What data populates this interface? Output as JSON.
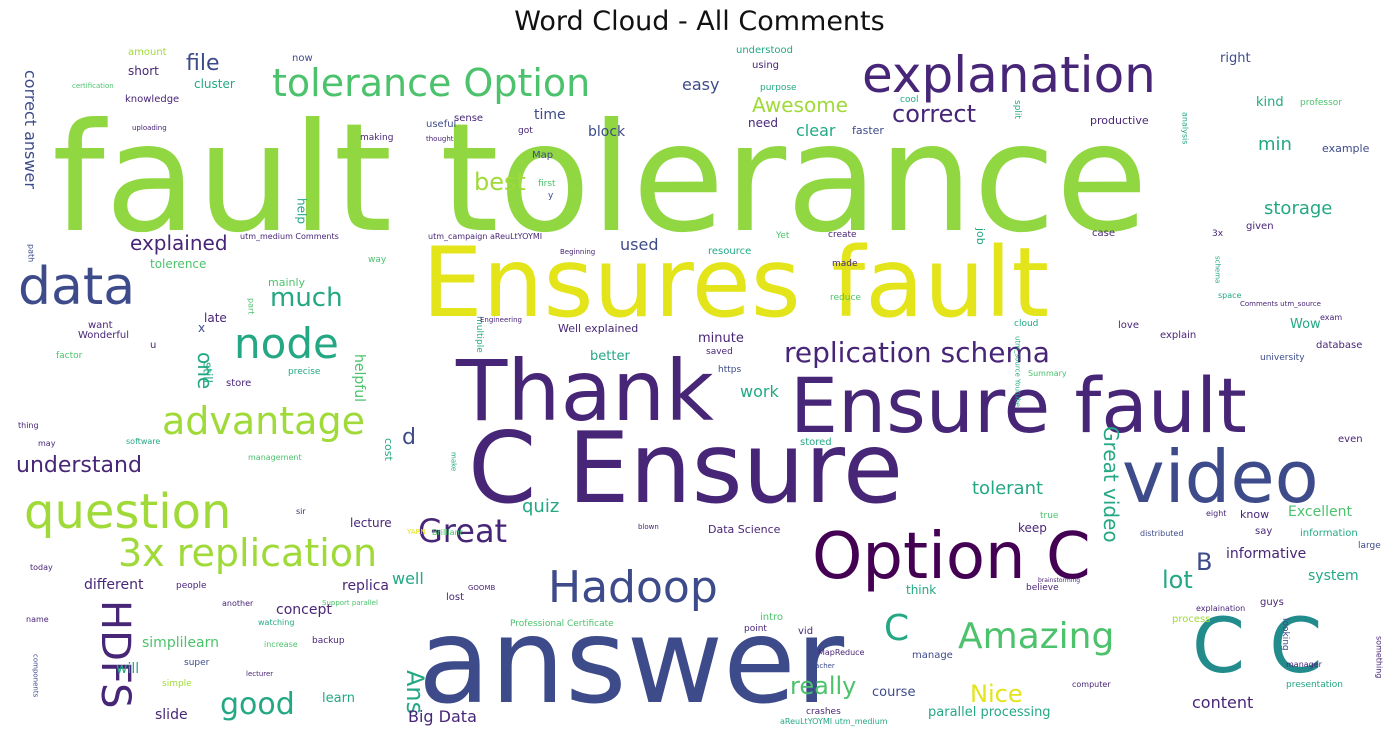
{
  "chart_data": {
    "type": "wordcloud",
    "title": "Word Cloud - All Comments",
    "colors": {
      "yellow": "#e3e419",
      "lime": "#91d742",
      "green": "#4cc26c",
      "teal": "#24a884",
      "cyan": "#228c8d",
      "blue": "#2d718e",
      "navy": "#3e4b8a",
      "indigo": "#482677",
      "purple": "#440154",
      "pale": "#a0da39"
    },
    "words": [
      {
        "text": "fault tolerance",
        "color": "lime"
      },
      {
        "text": "Ensures fault",
        "color": "yellow"
      },
      {
        "text": "answer",
        "color": "navy"
      },
      {
        "text": "C Ensure",
        "color": "indigo"
      },
      {
        "text": "Thank",
        "color": "indigo"
      },
      {
        "text": "Ensure fault",
        "color": "indigo"
      },
      {
        "text": "video",
        "color": "navy"
      },
      {
        "text": "Option C",
        "color": "purple"
      },
      {
        "text": "C C",
        "color": "cyan"
      },
      {
        "text": "explanation",
        "color": "indigo"
      },
      {
        "text": "data",
        "color": "navy"
      },
      {
        "text": "tolerance Option",
        "color": "green"
      },
      {
        "text": "Hadoop",
        "color": "navy"
      },
      {
        "text": "question",
        "color": "pale"
      },
      {
        "text": "3x replication",
        "color": "pale"
      },
      {
        "text": "node",
        "color": "teal"
      },
      {
        "text": "advantage",
        "color": "pale"
      },
      {
        "text": "replication schema",
        "color": "indigo"
      },
      {
        "text": "Amazing",
        "color": "green"
      },
      {
        "text": "Great",
        "color": "indigo"
      },
      {
        "text": "HDFS",
        "color": "indigo"
      },
      {
        "text": "good",
        "color": "teal"
      },
      {
        "text": "much",
        "color": "teal"
      },
      {
        "text": "explained",
        "color": "indigo"
      },
      {
        "text": "understand",
        "color": "indigo"
      },
      {
        "text": "correct",
        "color": "indigo"
      },
      {
        "text": "Awesome",
        "color": "pale"
      },
      {
        "text": "best",
        "color": "pale"
      },
      {
        "text": "file",
        "color": "navy"
      },
      {
        "text": "lot",
        "color": "teal"
      },
      {
        "text": "Nice",
        "color": "yellow"
      },
      {
        "text": "really",
        "color": "green"
      },
      {
        "text": "Ans",
        "color": "teal"
      },
      {
        "text": "quiz",
        "color": "teal"
      },
      {
        "text": "Great video",
        "color": "teal"
      },
      {
        "text": "correct answer",
        "color": "navy"
      },
      {
        "text": "one",
        "color": "teal"
      },
      {
        "text": "C",
        "color": "teal"
      },
      {
        "text": "B",
        "color": "navy"
      },
      {
        "text": "d",
        "color": "navy"
      },
      {
        "text": "storage",
        "color": "teal"
      },
      {
        "text": "tolerant",
        "color": "teal"
      },
      {
        "text": "min",
        "color": "teal"
      },
      {
        "text": "used",
        "color": "navy"
      },
      {
        "text": "clear",
        "color": "teal"
      },
      {
        "text": "easy",
        "color": "navy"
      },
      {
        "text": "time",
        "color": "navy"
      },
      {
        "text": "block",
        "color": "navy"
      },
      {
        "text": "content",
        "color": "indigo"
      },
      {
        "text": "informative",
        "color": "indigo"
      },
      {
        "text": "Excellent",
        "color": "green"
      },
      {
        "text": "work",
        "color": "teal"
      },
      {
        "text": "replica",
        "color": "indigo"
      },
      {
        "text": "concept",
        "color": "indigo"
      },
      {
        "text": "well",
        "color": "teal"
      },
      {
        "text": "Big Data",
        "color": "indigo"
      },
      {
        "text": "system",
        "color": "teal"
      },
      {
        "text": "slide",
        "color": "indigo"
      },
      {
        "text": "will",
        "color": "teal"
      },
      {
        "text": "simplilearn",
        "color": "green"
      },
      {
        "text": "course",
        "color": "navy"
      },
      {
        "text": "parallel processing",
        "color": "teal"
      },
      {
        "text": "learn",
        "color": "teal"
      },
      {
        "text": "lecture",
        "color": "indigo"
      },
      {
        "text": "kind",
        "color": "teal"
      },
      {
        "text": "right",
        "color": "navy"
      },
      {
        "text": "helpful",
        "color": "green"
      },
      {
        "text": "different",
        "color": "indigo"
      },
      {
        "text": "Wow",
        "color": "teal"
      },
      {
        "text": "better",
        "color": "teal"
      },
      {
        "text": "minute",
        "color": "indigo"
      },
      {
        "text": "Well explained",
        "color": "indigo"
      },
      {
        "text": "Data Science",
        "color": "indigo"
      },
      {
        "text": "keep",
        "color": "indigo"
      },
      {
        "text": "know",
        "color": "indigo"
      },
      {
        "text": "think",
        "color": "teal"
      },
      {
        "text": "faster",
        "color": "navy"
      },
      {
        "text": "productive",
        "color": "indigo"
      },
      {
        "text": "example",
        "color": "navy"
      },
      {
        "text": "need",
        "color": "indigo"
      },
      {
        "text": "cost",
        "color": "teal"
      },
      {
        "text": "job",
        "color": "teal"
      },
      {
        "text": "help",
        "color": "teal"
      },
      {
        "text": "late",
        "color": "indigo"
      },
      {
        "text": "x",
        "color": "navy"
      },
      {
        "text": "still",
        "color": "teal"
      },
      {
        "text": "tolerence",
        "color": "green"
      },
      {
        "text": "mainly",
        "color": "green"
      },
      {
        "text": "cluster",
        "color": "teal"
      },
      {
        "text": "short",
        "color": "indigo"
      },
      {
        "text": "knowledge",
        "color": "indigo"
      },
      {
        "text": "amount",
        "color": "pale"
      },
      {
        "text": "now",
        "color": "navy"
      },
      {
        "text": "understood",
        "color": "teal"
      },
      {
        "text": "using",
        "color": "indigo"
      },
      {
        "text": "purpose",
        "color": "teal"
      },
      {
        "text": "cool",
        "color": "teal"
      },
      {
        "text": "split",
        "color": "teal"
      },
      {
        "text": "analysis",
        "color": "teal"
      },
      {
        "text": "professor",
        "color": "green"
      },
      {
        "text": "useful",
        "color": "navy"
      },
      {
        "text": "sense",
        "color": "indigo"
      },
      {
        "text": "got",
        "color": "indigo"
      },
      {
        "text": "Map",
        "color": "navy"
      },
      {
        "text": "making",
        "color": "indigo"
      },
      {
        "text": "thought",
        "color": "indigo"
      },
      {
        "text": "uploading",
        "color": "indigo"
      },
      {
        "text": "certification",
        "color": "green"
      },
      {
        "text": "first",
        "color": "green"
      },
      {
        "text": "y",
        "color": "navy"
      },
      {
        "text": "resource",
        "color": "teal"
      },
      {
        "text": "Yet",
        "color": "green"
      },
      {
        "text": "create",
        "color": "indigo"
      },
      {
        "text": "case",
        "color": "indigo"
      },
      {
        "text": "3x",
        "color": "indigo"
      },
      {
        "text": "given",
        "color": "indigo"
      },
      {
        "text": "utm_medium Comments",
        "color": "indigo"
      },
      {
        "text": "utm_campaign aReuLtYOYMI",
        "color": "indigo"
      },
      {
        "text": "Beginning",
        "color": "indigo"
      },
      {
        "text": "made",
        "color": "indigo"
      },
      {
        "text": "reduce",
        "color": "green"
      },
      {
        "text": "way",
        "color": "green"
      },
      {
        "text": "path",
        "color": "navy"
      },
      {
        "text": "part",
        "color": "green"
      },
      {
        "text": "want",
        "color": "indigo"
      },
      {
        "text": "Wonderful",
        "color": "indigo"
      },
      {
        "text": "u",
        "color": "indigo"
      },
      {
        "text": "multiple",
        "color": "teal"
      },
      {
        "text": "Engineering",
        "color": "indigo"
      },
      {
        "text": "factor",
        "color": "green"
      },
      {
        "text": "store",
        "color": "indigo"
      },
      {
        "text": "precise",
        "color": "teal"
      },
      {
        "text": "saved",
        "color": "indigo"
      },
      {
        "text": "https",
        "color": "navy"
      },
      {
        "text": "Summary",
        "color": "green"
      },
      {
        "text": "cloud",
        "color": "teal"
      },
      {
        "text": "schema",
        "color": "teal"
      },
      {
        "text": "space",
        "color": "teal"
      },
      {
        "text": "Comments utm_source",
        "color": "indigo"
      },
      {
        "text": "exam",
        "color": "indigo"
      },
      {
        "text": "explain",
        "color": "indigo"
      },
      {
        "text": "love",
        "color": "indigo"
      },
      {
        "text": "university",
        "color": "navy"
      },
      {
        "text": "database",
        "color": "indigo"
      },
      {
        "text": "utm_source Youtube",
        "color": "teal"
      },
      {
        "text": "thing",
        "color": "indigo"
      },
      {
        "text": "may",
        "color": "indigo"
      },
      {
        "text": "software",
        "color": "teal"
      },
      {
        "text": "management",
        "color": "green"
      },
      {
        "text": "stored",
        "color": "teal"
      },
      {
        "text": "even",
        "color": "indigo"
      },
      {
        "text": "make",
        "color": "teal"
      },
      {
        "text": "YARN",
        "color": "yellow"
      },
      {
        "text": "Brilliant",
        "color": "green"
      },
      {
        "text": "sir",
        "color": "indigo"
      },
      {
        "text": "true",
        "color": "green"
      },
      {
        "text": "distributed",
        "color": "navy"
      },
      {
        "text": "eight",
        "color": "indigo"
      },
      {
        "text": "say",
        "color": "indigo"
      },
      {
        "text": "information",
        "color": "teal"
      },
      {
        "text": "large",
        "color": "navy"
      },
      {
        "text": "today",
        "color": "indigo"
      },
      {
        "text": "people",
        "color": "indigo"
      },
      {
        "text": "another",
        "color": "indigo"
      },
      {
        "text": "lost",
        "color": "indigo"
      },
      {
        "text": "GOOMB",
        "color": "indigo"
      },
      {
        "text": "believe",
        "color": "indigo"
      },
      {
        "text": "looking",
        "color": "navy"
      },
      {
        "text": "guys",
        "color": "indigo"
      },
      {
        "text": "something",
        "color": "indigo"
      },
      {
        "text": "name",
        "color": "indigo"
      },
      {
        "text": "watching",
        "color": "teal"
      },
      {
        "text": "Support parallel",
        "color": "green"
      },
      {
        "text": "Professional Certificate",
        "color": "green"
      },
      {
        "text": "intro",
        "color": "green"
      },
      {
        "text": "point",
        "color": "indigo"
      },
      {
        "text": "explaination",
        "color": "indigo"
      },
      {
        "text": "process",
        "color": "pale"
      },
      {
        "text": "backup",
        "color": "indigo"
      },
      {
        "text": "increase",
        "color": "green"
      },
      {
        "text": "vid",
        "color": "indigo"
      },
      {
        "text": "manage",
        "color": "navy"
      },
      {
        "text": "MapReduce",
        "color": "indigo"
      },
      {
        "text": "teacher",
        "color": "navy"
      },
      {
        "text": "manager",
        "color": "indigo"
      },
      {
        "text": "computer",
        "color": "indigo"
      },
      {
        "text": "presentation",
        "color": "teal"
      },
      {
        "text": "super",
        "color": "navy"
      },
      {
        "text": "simple",
        "color": "pale"
      },
      {
        "text": "lecturer",
        "color": "indigo"
      },
      {
        "text": "crashes",
        "color": "indigo"
      },
      {
        "text": "aReuLtYOYMI utm_medium",
        "color": "teal"
      },
      {
        "text": "components",
        "color": "navy"
      },
      {
        "text": "blown",
        "color": "indigo"
      },
      {
        "text": "brainstorming",
        "color": "indigo"
      }
    ]
  }
}
